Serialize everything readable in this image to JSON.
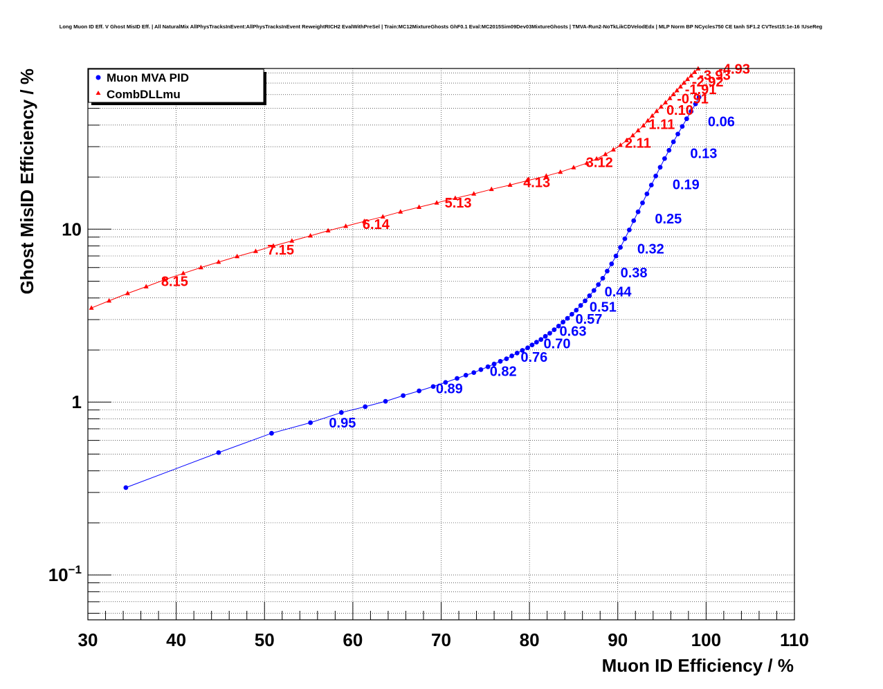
{
  "chart_data": {
    "type": "scatter",
    "title": "Long Muon ID Eff. V Ghost MisID Eff. | All NaturalMix AllPhysTracksInEvent:AllPhysTracksInEvent ReweightRICH2 EvalWithPreSel | Train:MC12MixtureGhosts GhF0.1 Eval:MC2015Sim09Dev03MixtureGhosts | TMVA-Run2-NoTkLikCDVelodEdx | MLP Norm BP NCycles750 CE tanh SF1.2 CVTest15:1e-16 !UseReg",
    "xlabel": "Muon ID Efficiency / %",
    "ylabel": "Ghost MisID Efficiency / %",
    "xlim": [
      30,
      110
    ],
    "ylim": [
      0.055,
      85
    ],
    "y_scale": "log",
    "grid": true,
    "legend_position": "top-left",
    "x_ticks": [
      {
        "value": 30,
        "label": "30"
      },
      {
        "value": 40,
        "label": "40"
      },
      {
        "value": 50,
        "label": "50"
      },
      {
        "value": 60,
        "label": "60"
      },
      {
        "value": 70,
        "label": "70"
      },
      {
        "value": 80,
        "label": "80"
      },
      {
        "value": 90,
        "label": "90"
      },
      {
        "value": 100,
        "label": "100"
      },
      {
        "value": 110,
        "label": "110"
      }
    ],
    "y_ticks": [
      {
        "value": 0.1,
        "base": "10",
        "exp": "−1"
      },
      {
        "value": 1,
        "base": "1",
        "exp": ""
      },
      {
        "value": 10,
        "base": "10",
        "exp": ""
      }
    ],
    "series": [
      {
        "name": "Muon MVA PID",
        "color": "#0000ff",
        "marker": "circle",
        "x": [
          34.3,
          44.8,
          50.8,
          55.2,
          58.7,
          61.4,
          63.7,
          65.7,
          67.5,
          69.1,
          70.5,
          71.8,
          72.8,
          73.7,
          74.5,
          75.3,
          76.0,
          76.7,
          77.4,
          78.0,
          78.6,
          79.2,
          79.8,
          80.3,
          80.8,
          81.3,
          81.8,
          82.3,
          82.8,
          83.3,
          83.8,
          84.3,
          84.8,
          85.3,
          85.8,
          86.3,
          86.8,
          87.3,
          87.8,
          88.3,
          88.8,
          89.3,
          89.8,
          90.3,
          90.8,
          91.3,
          91.8,
          92.3,
          92.8,
          93.3,
          93.8,
          94.3,
          94.8,
          95.3,
          95.8,
          96.3,
          96.8,
          97.3,
          97.8,
          98.3,
          98.8,
          99.2
        ],
        "y": [
          0.32,
          0.51,
          0.66,
          0.76,
          0.87,
          0.94,
          1.01,
          1.09,
          1.16,
          1.23,
          1.3,
          1.37,
          1.43,
          1.48,
          1.54,
          1.6,
          1.66,
          1.72,
          1.78,
          1.85,
          1.92,
          1.99,
          2.06,
          2.14,
          2.22,
          2.3,
          2.4,
          2.5,
          2.62,
          2.75,
          2.9,
          3.05,
          3.22,
          3.4,
          3.62,
          3.85,
          4.12,
          4.42,
          4.78,
          5.2,
          5.72,
          6.3,
          7.0,
          7.85,
          8.8,
          9.9,
          11.2,
          12.6,
          14.2,
          16.0,
          18.0,
          20.3,
          22.8,
          25.6,
          28.6,
          32.0,
          35.5,
          39.3,
          43.5,
          48.0,
          53.0,
          58.0
        ]
      },
      {
        "name": "CombDLLmu",
        "color": "#ff0000",
        "marker": "triangle",
        "x": [
          30.4,
          32.4,
          34.5,
          36.6,
          38.7,
          40.8,
          42.8,
          44.8,
          46.9,
          49.0,
          51.0,
          53.1,
          55.2,
          57.2,
          59.2,
          61.3,
          63.4,
          65.4,
          67.5,
          69.5,
          71.6,
          73.7,
          75.7,
          77.8,
          79.8,
          81.9,
          83.5,
          85.0,
          86.5,
          87.6,
          88.6,
          89.5,
          90.3,
          91.0,
          91.7,
          92.3,
          92.9,
          93.4,
          93.9,
          94.4,
          94.9,
          95.4,
          95.9,
          96.3,
          96.7,
          97.1,
          97.5,
          97.9,
          98.3,
          98.7,
          99.1
        ],
        "y": [
          3.5,
          3.85,
          4.25,
          4.65,
          5.1,
          5.55,
          6.0,
          6.45,
          6.95,
          7.45,
          8.0,
          8.55,
          9.15,
          9.8,
          10.4,
          11.1,
          11.8,
          12.6,
          13.4,
          14.2,
          15.1,
          16.0,
          17.0,
          18.0,
          19.1,
          20.3,
          21.4,
          22.7,
          24.1,
          25.5,
          27.1,
          28.8,
          30.6,
          32.6,
          34.8,
          37.2,
          39.7,
          42.4,
          45.2,
          48.1,
          51.0,
          54.0,
          57.1,
          60.2,
          63.4,
          66.7,
          70.1,
          73.6,
          77.2,
          80.9,
          84.7
        ]
      }
    ],
    "annotations_blue": [
      {
        "text": "0.06",
        "x": 100.2,
        "y": 42.0
      },
      {
        "text": "0.13",
        "x": 98.2,
        "y": 27.5
      },
      {
        "text": "0.19",
        "x": 96.2,
        "y": 18.2
      },
      {
        "text": "0.25",
        "x": 94.2,
        "y": 11.5
      },
      {
        "text": "0.32",
        "x": 92.2,
        "y": 7.7
      },
      {
        "text": "0.38",
        "x": 90.3,
        "y": 5.6
      },
      {
        "text": "0.44",
        "x": 88.5,
        "y": 4.35
      },
      {
        "text": "0.51",
        "x": 86.8,
        "y": 3.55
      },
      {
        "text": "0.57",
        "x": 85.2,
        "y": 3.02
      },
      {
        "text": "0.63",
        "x": 83.4,
        "y": 2.58
      },
      {
        "text": "0.70",
        "x": 81.6,
        "y": 2.18
      },
      {
        "text": "0.76",
        "x": 79.0,
        "y": 1.82
      },
      {
        "text": "0.82",
        "x": 75.5,
        "y": 1.51
      },
      {
        "text": "0.89",
        "x": 69.4,
        "y": 1.2
      },
      {
        "text": "0.95",
        "x": 57.3,
        "y": 0.76
      }
    ],
    "annotations_red": [
      {
        "text": "8.15",
        "x": 38.3,
        "y": 5.0
      },
      {
        "text": "7.15",
        "x": 50.3,
        "y": 7.6
      },
      {
        "text": "6.14",
        "x": 61.1,
        "y": 10.7
      },
      {
        "text": "5.13",
        "x": 70.4,
        "y": 14.2
      },
      {
        "text": "4.13",
        "x": 79.3,
        "y": 18.7
      },
      {
        "text": "3.12",
        "x": 86.4,
        "y": 24.4
      },
      {
        "text": "2.11",
        "x": 90.8,
        "y": 31.5
      },
      {
        "text": "1.11",
        "x": 93.5,
        "y": 40.5
      },
      {
        "text": "0.10",
        "x": 95.5,
        "y": 49.0
      },
      {
        "text": "-0.91",
        "x": 96.7,
        "y": 57.0
      },
      {
        "text": "-1.91",
        "x": 97.6,
        "y": 64.5
      },
      {
        "text": "-2.92",
        "x": 98.4,
        "y": 71.5
      },
      {
        "text": "-3.93",
        "x": 99.2,
        "y": 78.0
      },
      {
        "text": "-4.93",
        "x": 101.4,
        "y": 84.5
      }
    ]
  }
}
